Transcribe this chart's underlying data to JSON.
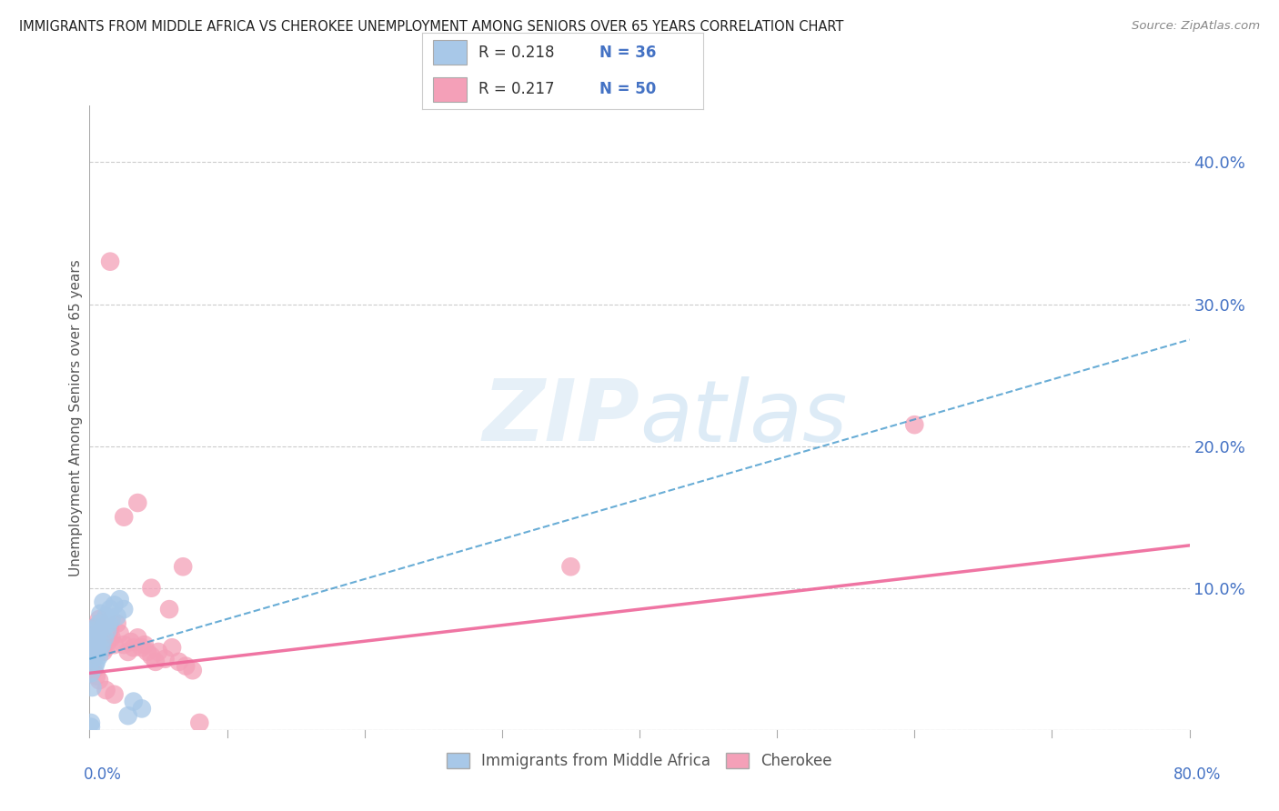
{
  "title": "IMMIGRANTS FROM MIDDLE AFRICA VS CHEROKEE UNEMPLOYMENT AMONG SENIORS OVER 65 YEARS CORRELATION CHART",
  "source": "Source: ZipAtlas.com",
  "ylabel": "Unemployment Among Seniors over 65 years",
  "yticks": [
    0.0,
    0.1,
    0.2,
    0.3,
    0.4
  ],
  "ytick_labels": [
    "",
    "10.0%",
    "20.0%",
    "30.0%",
    "40.0%"
  ],
  "xlim": [
    0.0,
    0.8
  ],
  "ylim": [
    0.0,
    0.44
  ],
  "blue_color": "#a8c8e8",
  "pink_color": "#f4a0b8",
  "blue_line_color": "#4499cc",
  "blue_line_color2": "#2266aa",
  "pink_line_color": "#ee6699",
  "axis_label_color": "#4472c4",
  "watermark_color": "#ddeeff",
  "blue_scatter_x": [
    0.001,
    0.002,
    0.002,
    0.003,
    0.003,
    0.003,
    0.004,
    0.004,
    0.004,
    0.005,
    0.005,
    0.006,
    0.006,
    0.007,
    0.007,
    0.008,
    0.008,
    0.009,
    0.01,
    0.01,
    0.011,
    0.012,
    0.013,
    0.014,
    0.015,
    0.016,
    0.018,
    0.02,
    0.022,
    0.025,
    0.028,
    0.032,
    0.038,
    0.001,
    0.001,
    0.002
  ],
  "blue_scatter_y": [
    0.04,
    0.055,
    0.065,
    0.05,
    0.06,
    0.07,
    0.045,
    0.058,
    0.072,
    0.062,
    0.048,
    0.055,
    0.068,
    0.052,
    0.075,
    0.058,
    0.082,
    0.06,
    0.072,
    0.09,
    0.065,
    0.08,
    0.07,
    0.075,
    0.085,
    0.078,
    0.088,
    0.08,
    0.092,
    0.085,
    0.01,
    0.02,
    0.015,
    0.005,
    0.002,
    0.03
  ],
  "pink_scatter_x": [
    0.001,
    0.002,
    0.003,
    0.004,
    0.005,
    0.006,
    0.007,
    0.008,
    0.009,
    0.01,
    0.011,
    0.012,
    0.013,
    0.014,
    0.015,
    0.016,
    0.018,
    0.02,
    0.022,
    0.025,
    0.028,
    0.03,
    0.032,
    0.035,
    0.038,
    0.04,
    0.042,
    0.045,
    0.048,
    0.05,
    0.055,
    0.06,
    0.065,
    0.07,
    0.075,
    0.08,
    0.002,
    0.003,
    0.005,
    0.007,
    0.012,
    0.018,
    0.025,
    0.035,
    0.045,
    0.058,
    0.068,
    0.6,
    0.35,
    0.015
  ],
  "pink_scatter_y": [
    0.05,
    0.06,
    0.072,
    0.058,
    0.068,
    0.055,
    0.078,
    0.062,
    0.065,
    0.055,
    0.07,
    0.058,
    0.062,
    0.068,
    0.072,
    0.065,
    0.06,
    0.075,
    0.068,
    0.06,
    0.055,
    0.062,
    0.058,
    0.065,
    0.058,
    0.06,
    0.055,
    0.052,
    0.048,
    0.055,
    0.05,
    0.058,
    0.048,
    0.045,
    0.042,
    0.005,
    0.048,
    0.042,
    0.038,
    0.035,
    0.028,
    0.025,
    0.15,
    0.16,
    0.1,
    0.085,
    0.115,
    0.215,
    0.115,
    0.33
  ],
  "blue_line_x0": 0.0,
  "blue_line_x1": 0.8,
  "blue_line_y0": 0.05,
  "blue_line_y1": 0.275,
  "pink_line_x0": 0.0,
  "pink_line_x1": 0.8,
  "pink_line_y0": 0.04,
  "pink_line_y1": 0.13
}
